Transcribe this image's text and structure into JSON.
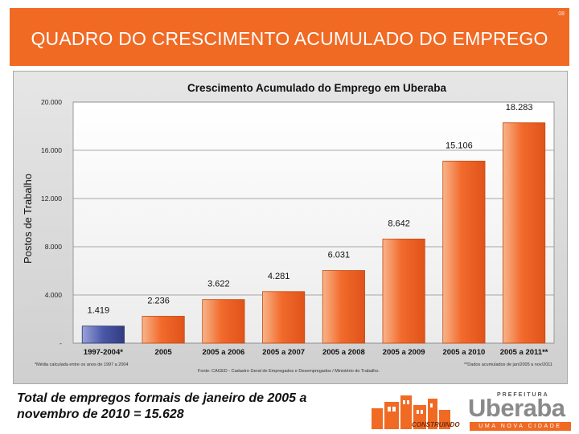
{
  "slide": {
    "number": "08",
    "title": "QUADRO DO CRESCIMENTO ACUMULADO DO EMPREGO",
    "summary": "Total de empregos formais de janeiro de 2005 a novembro de 2010 = 15.628"
  },
  "logo": {
    "prefeitura": "PREFEITURA",
    "name": "Uberaba",
    "tagline": "UMA NOVA CIDADE",
    "construindo": "CONSTRUINDO"
  },
  "colors": {
    "header": "#f06a24",
    "bar_highlight": "#4a57a8",
    "bar_default": "#f26a2c"
  },
  "chart_data": {
    "type": "bar",
    "title": "Crescimento Acumulado do Emprego em Uberaba",
    "ylabel": "Postos de Trabalho",
    "ylim": [
      0,
      20000
    ],
    "ytick_labels": [
      "-",
      "4.000",
      "8.000",
      "12.000",
      "16.000",
      "20.000"
    ],
    "ytick_values": [
      0,
      4000,
      8000,
      12000,
      16000,
      20000
    ],
    "grid": true,
    "categories": [
      "1997-2004*",
      "2005",
      "2005 a 2006",
      "2005 a 2007",
      "2005 a 2008",
      "2005 a 2009",
      "2005 a 2010",
      "2005 a 2011**"
    ],
    "values": [
      1419,
      2236,
      3622,
      4281,
      6031,
      8642,
      15106,
      18283
    ],
    "value_labels": [
      "1.419",
      "2.236",
      "3.622",
      "4.281",
      "6.031",
      "8.642",
      "15.106",
      "18.283"
    ],
    "highlight_index": 0,
    "footnote_left_1": "*Média calculada entre os anos de 1997 a 2004",
    "footnote_center": "Fonte: CAGED - Cadastro Geral de Empregados e Desempregados / Ministério do Trabalho.",
    "footnote_right_1": "**Dados acumulados de jan/2005 a nov/2011"
  }
}
